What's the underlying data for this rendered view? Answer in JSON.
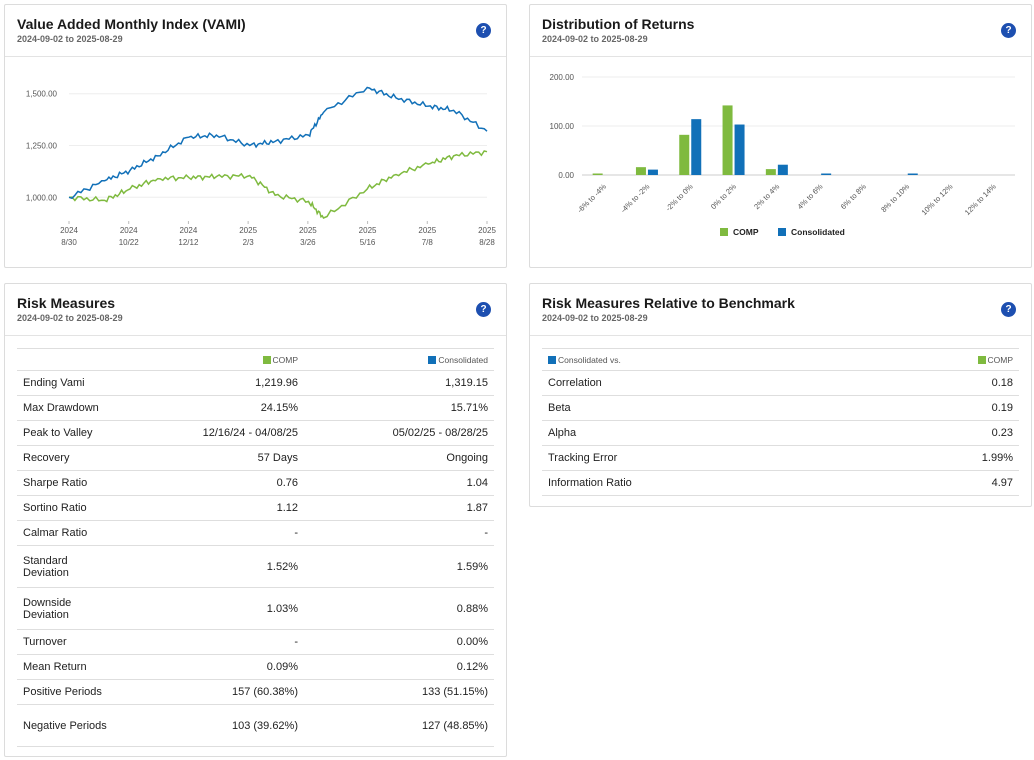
{
  "colors": {
    "comp": "#7fba3f",
    "consolidated": "#1170b8",
    "help": "#1d4fb0"
  },
  "vami": {
    "title": "Value Added Monthly Index (VAMI)",
    "subtitle": "2024-09-02 to 2025-08-29",
    "help": "?",
    "y_ticks": [
      "1,500.00",
      "1,250.00",
      "1,000.00"
    ],
    "x_ticks": [
      {
        "year": "2024",
        "date": "8/30"
      },
      {
        "year": "2024",
        "date": "10/22"
      },
      {
        "year": "2024",
        "date": "12/12"
      },
      {
        "year": "2025",
        "date": "2/3"
      },
      {
        "year": "2025",
        "date": "3/26"
      },
      {
        "year": "2025",
        "date": "5/16"
      },
      {
        "year": "2025",
        "date": "7/8"
      },
      {
        "year": "2025",
        "date": "8/28"
      }
    ]
  },
  "chart_data": [
    {
      "type": "line",
      "title": "Value Added Monthly Index (VAMI)",
      "x": [
        "2024-08-30",
        "2024-09-30",
        "2024-10-22",
        "2024-11-15",
        "2024-12-12",
        "2025-01-05",
        "2025-02-03",
        "2025-02-25",
        "2025-03-26",
        "2025-04-08",
        "2025-05-16",
        "2025-06-10",
        "2025-07-08",
        "2025-07-30",
        "2025-08-28"
      ],
      "series": [
        {
          "name": "COMP",
          "values": [
            1000,
            985,
            1040,
            1090,
            1095,
            1100,
            1105,
            1010,
            980,
            900,
            1040,
            1110,
            1160,
            1200,
            1220
          ]
        },
        {
          "name": "Consolidated",
          "values": [
            1000,
            1080,
            1130,
            1200,
            1290,
            1300,
            1250,
            1270,
            1300,
            1410,
            1530,
            1480,
            1440,
            1420,
            1319
          ]
        }
      ],
      "ylim": [
        900,
        1600
      ]
    },
    {
      "type": "bar",
      "title": "Distribution of Returns",
      "categories": [
        "-6% to -4%",
        "-4% to -2%",
        "-2% to 0%",
        "0% to 2%",
        "2% to 4%",
        "4% to 6%",
        "6% to 8%",
        "8% to 10%",
        "10% to 12%",
        "12% to 14%"
      ],
      "series": [
        {
          "name": "COMP",
          "values": [
            1,
            16,
            82,
            142,
            12,
            0,
            0,
            0,
            0,
            0
          ]
        },
        {
          "name": "Consolidated",
          "values": [
            0,
            11,
            114,
            103,
            21,
            1,
            0,
            2,
            0,
            0
          ]
        }
      ],
      "y_ticks": [
        "200.00",
        "100.00",
        "0.00"
      ],
      "ylim": [
        0,
        200
      ],
      "legend_position": "bottom"
    }
  ],
  "dist": {
    "title": "Distribution of Returns",
    "subtitle": "2024-09-02 to 2025-08-29",
    "help": "?",
    "legend": [
      "COMP",
      "Consolidated"
    ]
  },
  "risk": {
    "title": "Risk Measures",
    "subtitle": "2024-09-02 to 2025-08-29",
    "help": "?",
    "col1": "COMP",
    "col2": "Consolidated",
    "rows": [
      {
        "label": "Ending Vami",
        "comp": "1,219.96",
        "cons": "1,319.15",
        "tall": false
      },
      {
        "label": "Max Drawdown",
        "comp": "24.15%",
        "cons": "15.71%",
        "tall": false
      },
      {
        "label": "Peak to Valley",
        "comp": "12/16/24 - 04/08/25",
        "cons": "05/02/25 - 08/28/25",
        "tall": false
      },
      {
        "label": "Recovery",
        "comp": "57 Days",
        "cons": "Ongoing",
        "tall": false
      },
      {
        "label": "Sharpe Ratio",
        "comp": "0.76",
        "cons": "1.04",
        "tall": false
      },
      {
        "label": "Sortino Ratio",
        "comp": "1.12",
        "cons": "1.87",
        "tall": false
      },
      {
        "label": "Calmar Ratio",
        "comp": "-",
        "cons": "-",
        "tall": false
      },
      {
        "label": "Standard Deviation",
        "comp": "1.52%",
        "cons": "1.59%",
        "tall": true
      },
      {
        "label": "Downside Deviation",
        "comp": "1.03%",
        "cons": "0.88%",
        "tall": true
      },
      {
        "label": "Turnover",
        "comp": "-",
        "cons": "0.00%",
        "tall": false
      },
      {
        "label": "Mean Return",
        "comp": "0.09%",
        "cons": "0.12%",
        "tall": false
      },
      {
        "label": "Positive Periods",
        "comp": "157 (60.38%)",
        "cons": "133 (51.15%)",
        "tall": false
      },
      {
        "label": "Negative Periods",
        "comp": "103 (39.62%)",
        "cons": "127 (48.85%)",
        "tall": true
      }
    ]
  },
  "bench": {
    "title": "Risk Measures Relative to Benchmark",
    "subtitle": "2024-09-02 to 2025-08-29",
    "help": "?",
    "col1": "Consolidated vs.",
    "col2": "COMP",
    "rows": [
      {
        "label": "Correlation",
        "value": "0.18"
      },
      {
        "label": "Beta",
        "value": "0.19"
      },
      {
        "label": "Alpha",
        "value": "0.23"
      },
      {
        "label": "Tracking Error",
        "value": "1.99%"
      },
      {
        "label": "Information Ratio",
        "value": "4.97"
      }
    ]
  }
}
